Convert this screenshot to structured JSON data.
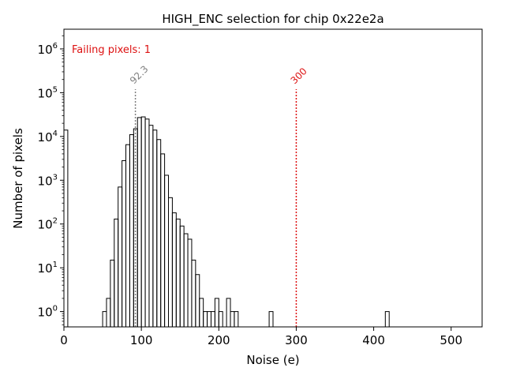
{
  "chart_data": {
    "type": "histogram",
    "title": "HIGH_ENC selection for chip 0x22e2a",
    "xlabel": "Noise (e)",
    "ylabel": "Number of pixels",
    "xlim": [
      0,
      540
    ],
    "ylim_log10": [
      -0.35,
      6.45
    ],
    "y_scale": "log",
    "grid": false,
    "x_ticks": [
      0,
      100,
      200,
      300,
      400,
      500
    ],
    "y_ticks": [
      {
        "exp": 0,
        "base": "10",
        "sup": "0"
      },
      {
        "exp": 1,
        "base": "10",
        "sup": "1"
      },
      {
        "exp": 2,
        "base": "10",
        "sup": "2"
      },
      {
        "exp": 3,
        "base": "10",
        "sup": "3"
      },
      {
        "exp": 4,
        "base": "10",
        "sup": "4"
      },
      {
        "exp": 5,
        "base": "10",
        "sup": "5"
      },
      {
        "exp": 6,
        "base": "10",
        "sup": "6"
      }
    ],
    "bin_width": 5,
    "bins": [
      [
        0,
        14000
      ],
      [
        50,
        1
      ],
      [
        55,
        2
      ],
      [
        60,
        15
      ],
      [
        65,
        130
      ],
      [
        70,
        700
      ],
      [
        75,
        2800
      ],
      [
        80,
        6500
      ],
      [
        85,
        11000
      ],
      [
        90,
        15000
      ],
      [
        95,
        27000
      ],
      [
        100,
        28000
      ],
      [
        105,
        25000
      ],
      [
        110,
        18000
      ],
      [
        115,
        14000
      ],
      [
        120,
        8500
      ],
      [
        125,
        4000
      ],
      [
        130,
        1300
      ],
      [
        135,
        400
      ],
      [
        140,
        180
      ],
      [
        145,
        130
      ],
      [
        150,
        90
      ],
      [
        155,
        60
      ],
      [
        160,
        45
      ],
      [
        165,
        15
      ],
      [
        170,
        7
      ],
      [
        175,
        2
      ],
      [
        180,
        1
      ],
      [
        185,
        1
      ],
      [
        190,
        1
      ],
      [
        195,
        2
      ],
      [
        200,
        1
      ],
      [
        210,
        2
      ],
      [
        215,
        1
      ],
      [
        220,
        1
      ],
      [
        265,
        1
      ],
      [
        415,
        1
      ]
    ],
    "annotations": [
      {
        "x": 92.3,
        "label": "92.3",
        "color": "#808080",
        "y_top": 120000
      },
      {
        "x": 300,
        "label": "300",
        "color": "#dd1111",
        "y_top": 120000
      }
    ],
    "failing_label": "Failing pixels: 1",
    "failing_color": "#dd1111"
  }
}
